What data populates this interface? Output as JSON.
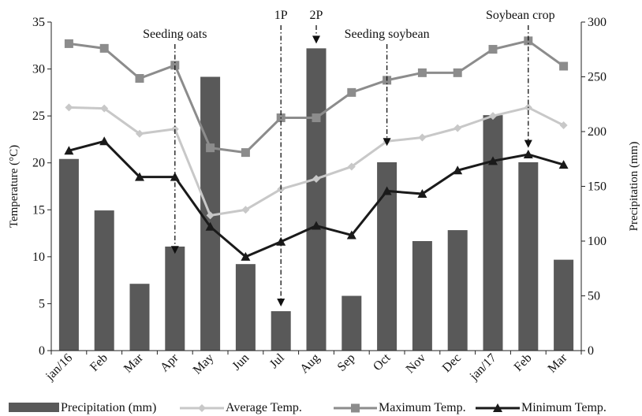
{
  "chart_data": {
    "type": "bar+line",
    "categories": [
      "jan/16",
      "Feb",
      "Mar",
      "Apr",
      "May",
      "Jun",
      "Jul",
      "Aug",
      "Sep",
      "Oct",
      "Nov",
      "Dec",
      "jan/17",
      "Feb",
      "Mar"
    ],
    "bar_series": {
      "name": "Precipitation (mm)",
      "axis": "right",
      "color": "#595959",
      "values": [
        175,
        128,
        61,
        95,
        250,
        79,
        36,
        276,
        50,
        172,
        100,
        110,
        215,
        172,
        83
      ]
    },
    "series": [
      {
        "name": "Average Temp.",
        "axis": "left",
        "color": "#c8c8c8",
        "marker": "diamond",
        "values": [
          25.9,
          25.8,
          23.1,
          23.6,
          14.4,
          15.0,
          17.2,
          18.3,
          19.6,
          22.3,
          22.7,
          23.7,
          25.0,
          25.9,
          24.0
        ]
      },
      {
        "name": "Maximum Temp.",
        "axis": "left",
        "color": "#8c8c8c",
        "marker": "square",
        "values": [
          32.7,
          32.2,
          29.0,
          30.4,
          21.6,
          21.1,
          24.8,
          24.8,
          27.5,
          28.8,
          29.6,
          29.6,
          32.1,
          33.0,
          30.3
        ]
      },
      {
        "name": "Minimum Temp.",
        "axis": "left",
        "color": "#1a1a1a",
        "marker": "triangle",
        "values": [
          21.3,
          22.3,
          18.5,
          18.5,
          13.2,
          10.0,
          11.6,
          13.3,
          12.3,
          17.0,
          16.7,
          19.2,
          20.2,
          20.9,
          19.8
        ]
      }
    ],
    "ylabel": "Temperature (°C)",
    "y2label": "Precipitation (mm)",
    "ylim": [
      0,
      35
    ],
    "y2lim": [
      0,
      300
    ],
    "yticks": [
      "0",
      "5",
      "10",
      "15",
      "20",
      "25",
      "30",
      "35"
    ],
    "y2ticks": [
      "0",
      "50",
      "100",
      "150",
      "200",
      "250",
      "300"
    ],
    "grid": false,
    "legend_position": "bottom",
    "annotations": [
      {
        "text": "Seeding oats",
        "category_index": 3,
        "arrow_to_value": 10.3
      },
      {
        "text": "1P",
        "category_index": 6,
        "arrow_to_value": 4.7
      },
      {
        "text": "2P",
        "category_index": 7,
        "arrow_to_value": 32.7
      },
      {
        "text": "Seeding soybean",
        "category_index": 9,
        "arrow_to_value": 21.8
      },
      {
        "text": "Soybean crop",
        "category_index": 13,
        "arrow_to_value": 21.6
      }
    ]
  }
}
